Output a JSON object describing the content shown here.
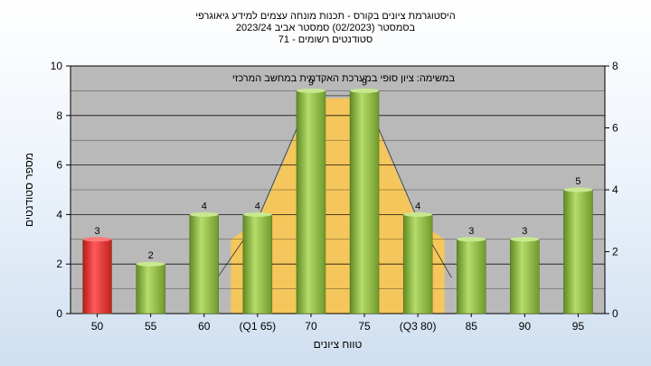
{
  "chart_data": {
    "type": "bar",
    "title_lines": [
      "היסטוגרמת ציונים בקורס - תכנות מונחה עצמים למידע גיאוגרפי",
      "בסמסטר  (02/2023)  סמסטר אביב 2023/24",
      "סטודנטים רשומים - 71"
    ],
    "annotation": "במשימה: ציון סופי במערכת האקדמית במחשב המרכזי",
    "xlabel": "טווח ציונים",
    "ylabel": "מספר סטודנטים",
    "categories": [
      "50",
      "55",
      "60",
      "(Q1 65)",
      "70",
      "75",
      "(Q3 80)",
      "85",
      "90",
      "95"
    ],
    "values": [
      3,
      2,
      4,
      4,
      9,
      9,
      4,
      3,
      3,
      5
    ],
    "highlight_index": 0,
    "ylim": [
      0,
      10
    ],
    "yticks": [
      "0",
      "2",
      "4",
      "6",
      "8",
      "10"
    ],
    "y2lim": [
      0,
      8
    ],
    "y2ticks": [
      "0",
      "2",
      "4",
      "6",
      "8"
    ],
    "grid": true,
    "colors": {
      "bar": "#8fbf45",
      "highlight_bar": "#e53030",
      "iqr_band": "#ffc84a",
      "plot_bg": "#b9b9b9"
    }
  }
}
